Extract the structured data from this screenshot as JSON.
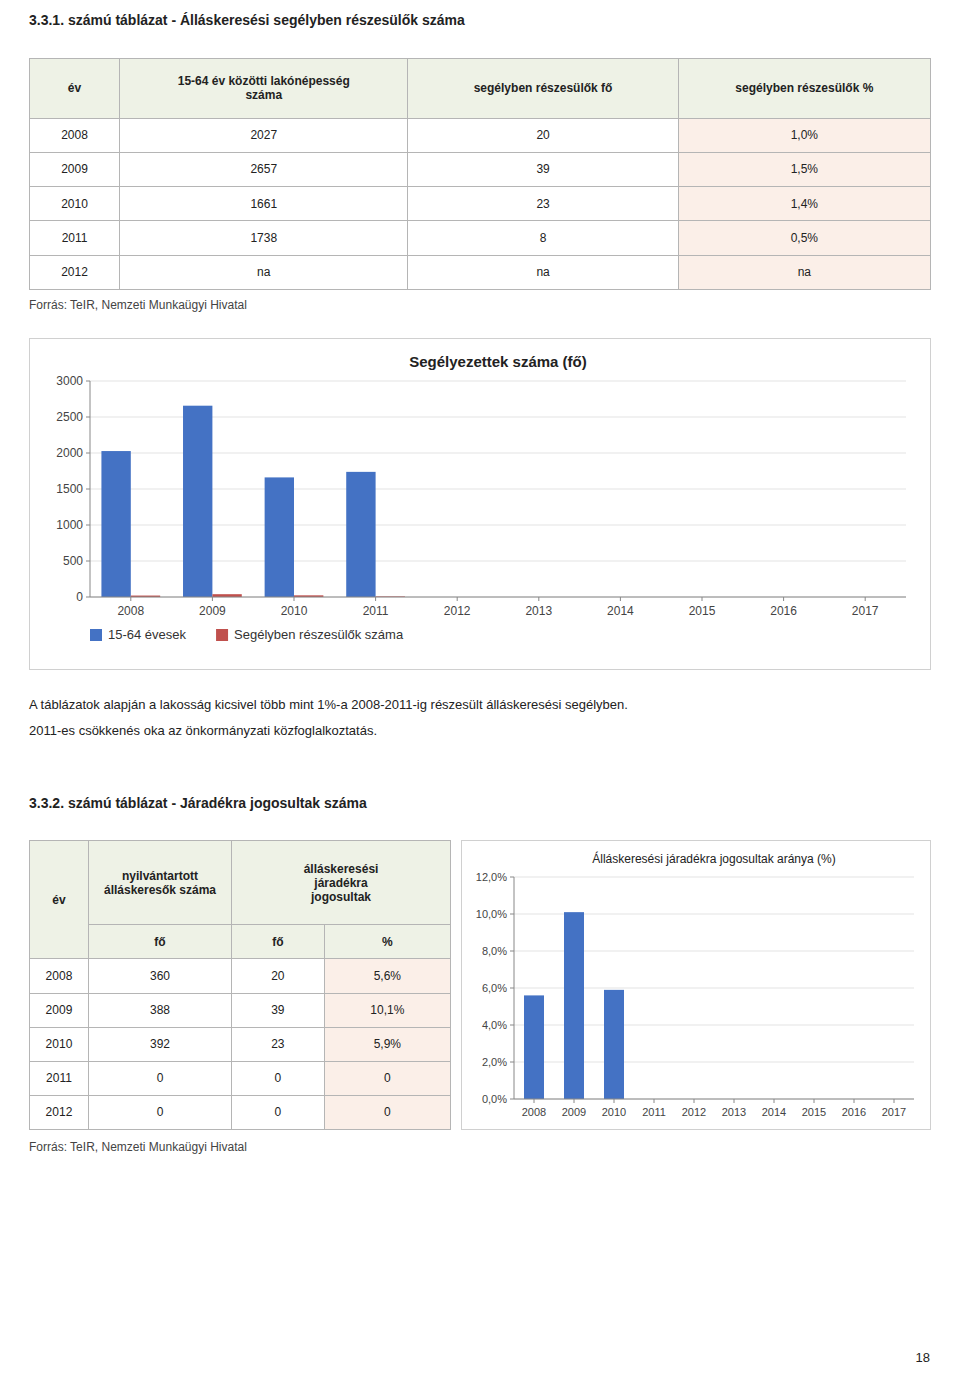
{
  "chart_data": [
    {
      "type": "bar",
      "title": "Segélyezettek száma (fő)",
      "categories": [
        "2008",
        "2009",
        "2010",
        "2011",
        "2012",
        "2013",
        "2014",
        "2015",
        "2016",
        "2017"
      ],
      "series": [
        {
          "name": "15-64 évesek",
          "color": "#4472C4",
          "values": [
            2027,
            2657,
            1661,
            1738,
            0,
            0,
            0,
            0,
            0,
            0
          ]
        },
        {
          "name": "Segélyben részesülők száma",
          "color": "#C0504D",
          "values": [
            20,
            39,
            23,
            8,
            0,
            0,
            0,
            0,
            0,
            0
          ]
        }
      ],
      "ylim": [
        0,
        3000
      ],
      "yticks": [
        0,
        500,
        1000,
        1500,
        2000,
        2500,
        3000
      ],
      "grid": true,
      "legend": "bottom"
    },
    {
      "type": "bar",
      "title": "Álláskeresési járadékra jogosultak aránya (%)",
      "categories": [
        "2008",
        "2009",
        "2010",
        "2011",
        "2012",
        "2013",
        "2014",
        "2015",
        "2016",
        "2017"
      ],
      "values": [
        5.6,
        10.1,
        5.9,
        0,
        0,
        0,
        0,
        0,
        0,
        0
      ],
      "color": "#4472C4",
      "ylim": [
        0,
        12
      ],
      "yticks": [
        {
          "value": 0,
          "label": "0,0%"
        },
        {
          "value": 2,
          "label": "2,0%"
        },
        {
          "value": 4,
          "label": "4,0%"
        },
        {
          "value": 6,
          "label": "6,0%"
        },
        {
          "value": 8,
          "label": "8,0%"
        },
        {
          "value": 10,
          "label": "10,0%"
        },
        {
          "value": 12,
          "label": "12,0%"
        }
      ],
      "grid": true
    }
  ],
  "tables": [
    {
      "title": "3.3.1. számú táblázat - Álláskeresési segélyben részesülők száma",
      "headers": [
        "év",
        "15-64 év közötti lakónépesség\nszáma",
        "segélyben részesülők fő",
        "segélyben részesülők %"
      ],
      "rows": [
        [
          "2008",
          "2027",
          "20",
          "1,0%"
        ],
        [
          "2009",
          "2657",
          "39",
          "1,5%"
        ],
        [
          "2010",
          "1661",
          "23",
          "1,4%"
        ],
        [
          "2011",
          "1738",
          "8",
          "0,5%"
        ],
        [
          "2012",
          "na",
          "na",
          "na"
        ]
      ],
      "source": "Forrás: TeIR, Nemzeti Munkaügyi Hivatal"
    },
    {
      "title": "3.3.2. számú táblázat - Járadékra jogosultak száma",
      "headers": [
        "év",
        "nyilvántartott\nálláskeresők száma",
        "álláskeresési\njáradékra\njogosultak"
      ],
      "subheaders": [
        "fő",
        "fő",
        "%"
      ],
      "rows": [
        [
          "2008",
          "360",
          "20",
          "5,6%"
        ],
        [
          "2009",
          "388",
          "39",
          "10,1%"
        ],
        [
          "2010",
          "392",
          "23",
          "5,9%"
        ],
        [
          "2011",
          "0",
          "0",
          "0"
        ],
        [
          "2012",
          "0",
          "0",
          "0"
        ]
      ],
      "source": "Forrás: TeIR, Nemzeti Munkaügyi Hivatal"
    }
  ],
  "body_text": [
    "A táblázatok alapján a lakosság kicsivel több mint 1%-a 2008-2011-ig részesült álláskeresési segélyben.",
    "2011-es csökkenés oka az önkormányzati közfoglalkoztatás."
  ],
  "page_number": "18"
}
